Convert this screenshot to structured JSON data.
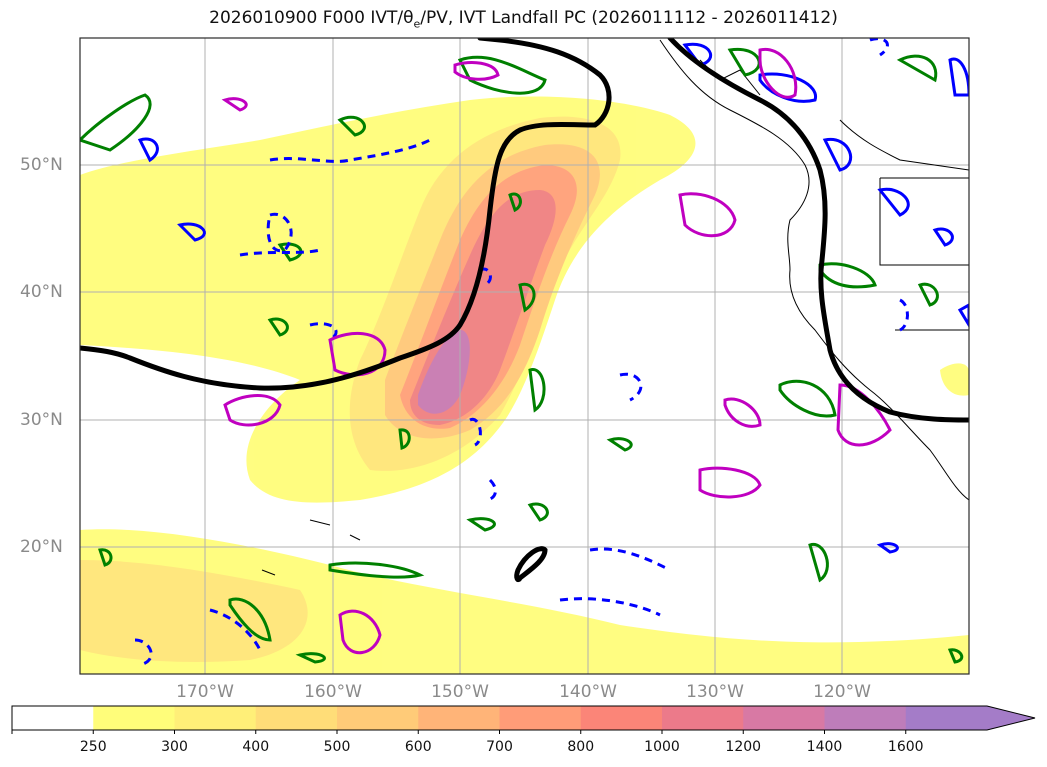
{
  "title": {
    "prefix": "2026010900 F000 IVT/",
    "theta": "θ",
    "theta_sub": "e",
    "suffix": "/PV, IVT Landfall PC (2026011112 - 2026011412)"
  },
  "map": {
    "lat_labels": [
      "50°N",
      "40°N",
      "30°N",
      "20°N"
    ],
    "lon_labels": [
      "170°W",
      "160°W",
      "150°W",
      "140°W",
      "130°W",
      "120°W"
    ],
    "colors": {
      "frame": "#222222",
      "grid": "#b0b0b0",
      "coast": "#000000",
      "theta_e_line": "#000000",
      "pv_green": "#008000",
      "pv_blue": "#0000ff",
      "pv_magenta": "#c000c0"
    }
  },
  "colorbar": {
    "ticks": [
      "250",
      "300",
      "400",
      "500",
      "600",
      "700",
      "800",
      "1000",
      "1200",
      "1400",
      "1600"
    ],
    "colors": [
      "#ffffff",
      "#fffd7a",
      "#ffef78",
      "#ffdd78",
      "#ffcb78",
      "#ffb478",
      "#ff9c78",
      "#fb8578",
      "#ec7a8a",
      "#d879a4",
      "#be7dba",
      "#a47cc8"
    ],
    "extend": "max"
  }
}
